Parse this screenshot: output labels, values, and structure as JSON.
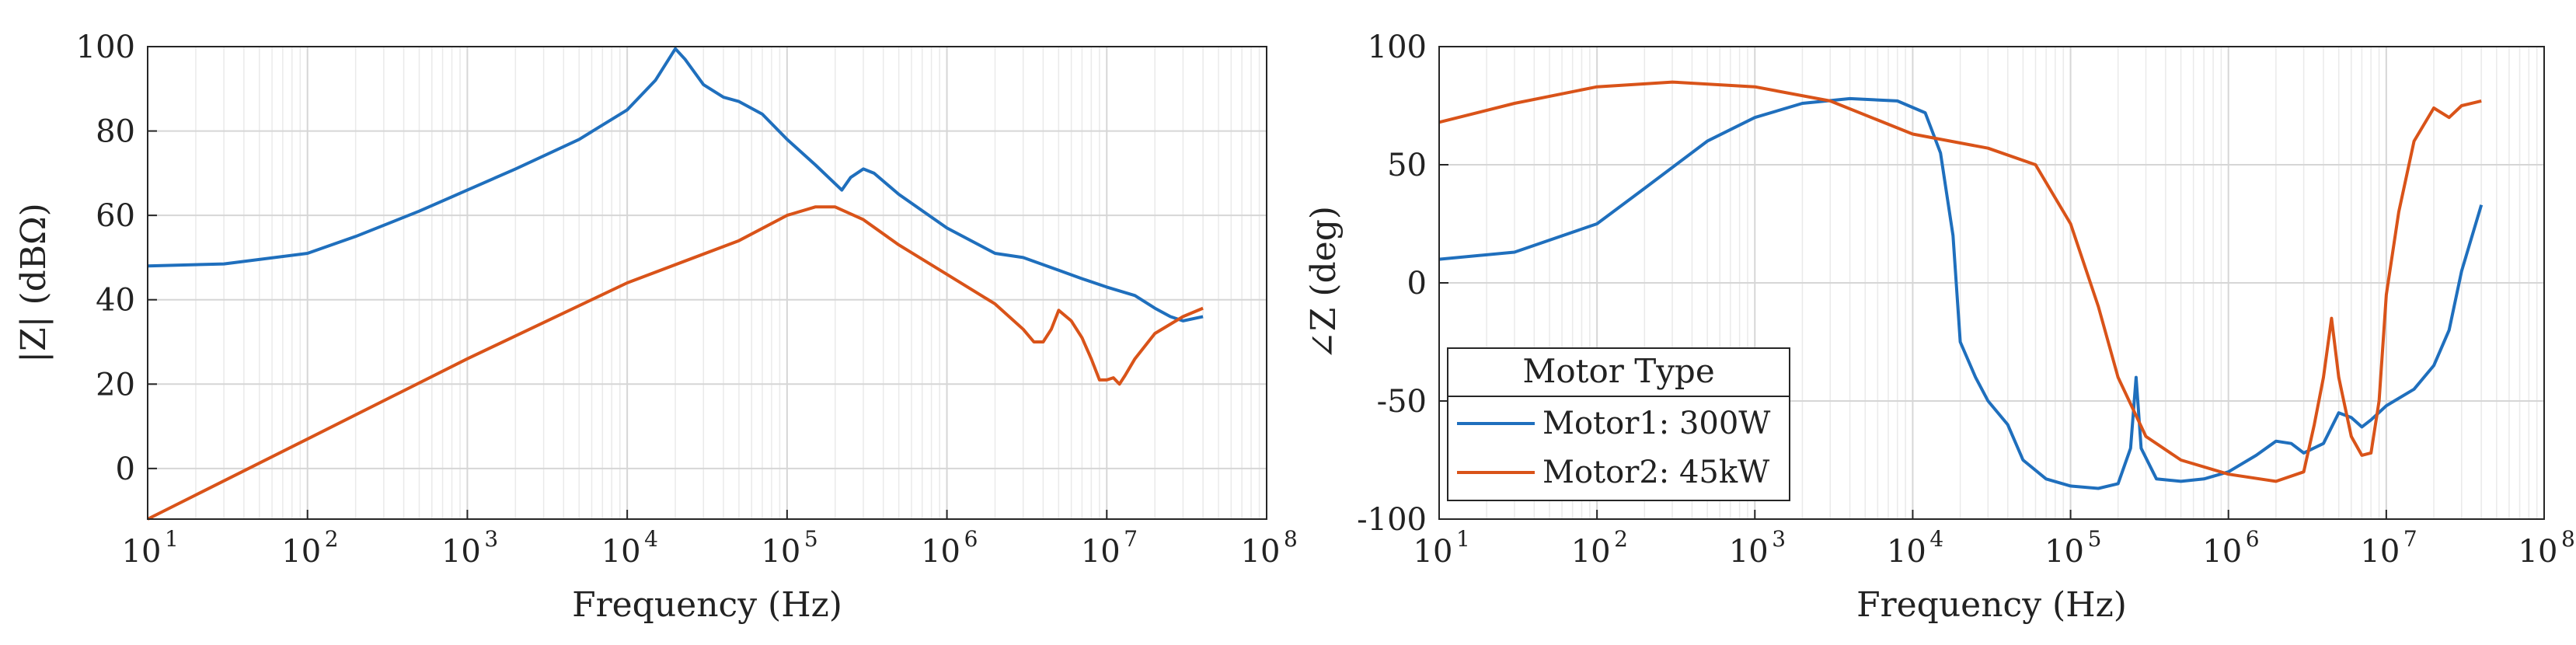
{
  "chart_data": [
    {
      "id": "magnitude",
      "type": "line",
      "xscale": "log",
      "xlabel": "Frequency (Hz)",
      "ylabel": "|Z| (dBΩ)",
      "xlim": [
        10,
        100000000
      ],
      "ylim": [
        -12,
        100
      ],
      "xticks": [
        10,
        100,
        1000,
        10000,
        100000,
        1000000,
        10000000,
        100000000
      ],
      "xtick_labels": [
        {
          "base": "10",
          "exp": "1"
        },
        {
          "base": "10",
          "exp": "2"
        },
        {
          "base": "10",
          "exp": "3"
        },
        {
          "base": "10",
          "exp": "4"
        },
        {
          "base": "10",
          "exp": "5"
        },
        {
          "base": "10",
          "exp": "6"
        },
        {
          "base": "10",
          "exp": "7"
        },
        {
          "base": "10",
          "exp": "8"
        }
      ],
      "yticks": [
        0,
        20,
        40,
        60,
        80,
        100
      ],
      "ytick_labels": [
        "0",
        "20",
        "40",
        "60",
        "80",
        "100"
      ],
      "grid": true,
      "series": [
        {
          "name": "Motor1: 300W",
          "color": "#1f6fbd",
          "x": [
            10,
            30,
            100,
            200,
            500,
            1000,
            2000,
            5000,
            10000,
            15000,
            20000,
            23000,
            30000,
            40000,
            50000,
            70000,
            100000,
            150000,
            220000,
            250000,
            300000,
            350000,
            500000,
            1000000,
            2000000,
            3000000,
            5000000,
            7000000,
            10000000,
            15000000,
            20000000,
            25000000,
            30000000,
            40000000
          ],
          "y": [
            48,
            48.5,
            51,
            55,
            61,
            66,
            71,
            78,
            85,
            92,
            99.5,
            97,
            91,
            88,
            87,
            84,
            78,
            72,
            66,
            69,
            71,
            70,
            65,
            57,
            51,
            50,
            47,
            45,
            43,
            41,
            38,
            36,
            35,
            36
          ]
        },
        {
          "name": "Motor2: 45kW",
          "color": "#d95319",
          "x": [
            10,
            100,
            1000,
            10000,
            50000,
            100000,
            150000,
            200000,
            300000,
            500000,
            1000000,
            2000000,
            3000000,
            3500000,
            4000000,
            4500000,
            5000000,
            6000000,
            7000000,
            8000000,
            9000000,
            10000000,
            11000000,
            12000000,
            13000000,
            15000000,
            20000000,
            30000000,
            40000000
          ],
          "y": [
            -12,
            7,
            26,
            44,
            54,
            60,
            62,
            62,
            59,
            53,
            46,
            39,
            33,
            30,
            30,
            33,
            37.5,
            35,
            31,
            26,
            21,
            21,
            21.5,
            20,
            22,
            26,
            32,
            36,
            38
          ]
        }
      ]
    },
    {
      "id": "phase",
      "type": "line",
      "xscale": "log",
      "xlabel": "Frequency (Hz)",
      "ylabel": "∠Z (deg)",
      "xlim": [
        10,
        100000000
      ],
      "ylim": [
        -100,
        100
      ],
      "xticks": [
        10,
        100,
        1000,
        10000,
        100000,
        1000000,
        10000000,
        100000000
      ],
      "xtick_labels": [
        {
          "base": "10",
          "exp": "1"
        },
        {
          "base": "10",
          "exp": "2"
        },
        {
          "base": "10",
          "exp": "3"
        },
        {
          "base": "10",
          "exp": "4"
        },
        {
          "base": "10",
          "exp": "5"
        },
        {
          "base": "10",
          "exp": "6"
        },
        {
          "base": "10",
          "exp": "7"
        },
        {
          "base": "10",
          "exp": "8"
        }
      ],
      "yticks": [
        -100,
        -50,
        0,
        50,
        100
      ],
      "ytick_labels": [
        "-100",
        "-50",
        "0",
        "50",
        "100"
      ],
      "grid": true,
      "legend": {
        "title": "Motor Type",
        "location": "bottom-left",
        "entries": [
          "Motor1: 300W",
          "Motor2: 45kW"
        ]
      },
      "series": [
        {
          "name": "Motor1: 300W",
          "color": "#1f6fbd",
          "x": [
            10,
            30,
            100,
            200,
            500,
            1000,
            2000,
            4000,
            8000,
            12000,
            15000,
            18000,
            20000,
            25000,
            30000,
            40000,
            50000,
            70000,
            100000,
            150000,
            200000,
            240000,
            260000,
            280000,
            350000,
            500000,
            700000,
            1000000,
            1500000,
            2000000,
            2500000,
            3000000,
            4000000,
            5000000,
            6000000,
            7000000,
            8000000,
            10000000,
            15000000,
            20000000,
            25000000,
            30000000,
            40000000
          ],
          "y": [
            10,
            13,
            25,
            40,
            60,
            70,
            76,
            78,
            77,
            72,
            55,
            20,
            -25,
            -40,
            -50,
            -60,
            -75,
            -83,
            -86,
            -87,
            -85,
            -70,
            -40,
            -70,
            -83,
            -84,
            -83,
            -80,
            -73,
            -67,
            -68,
            -72,
            -68,
            -55,
            -57,
            -61,
            -58,
            -52,
            -45,
            -35,
            -20,
            5,
            33
          ]
        },
        {
          "name": "Motor2: 45kW",
          "color": "#d95319",
          "x": [
            10,
            30,
            100,
            300,
            1000,
            3000,
            10000,
            30000,
            60000,
            100000,
            150000,
            200000,
            300000,
            500000,
            1000000,
            2000000,
            3000000,
            3500000,
            4000000,
            4500000,
            5000000,
            6000000,
            7000000,
            8000000,
            9000000,
            10000000,
            12000000,
            15000000,
            20000000,
            25000000,
            30000000,
            40000000
          ],
          "y": [
            68,
            76,
            83,
            85,
            83,
            77,
            63,
            57,
            50,
            25,
            -10,
            -40,
            -65,
            -75,
            -81,
            -84,
            -80,
            -60,
            -40,
            -15,
            -40,
            -65,
            -73,
            -72,
            -50,
            -5,
            30,
            60,
            74,
            70,
            75,
            77
          ]
        }
      ]
    }
  ]
}
